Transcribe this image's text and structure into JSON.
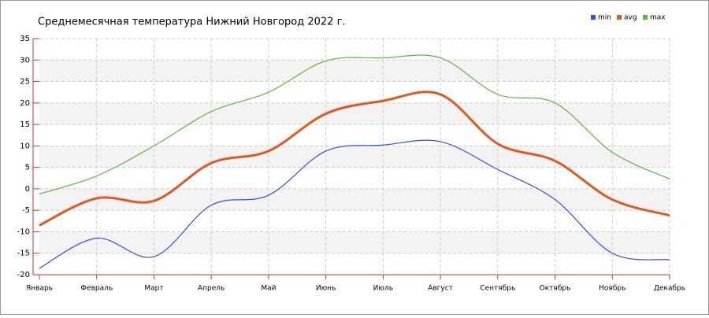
{
  "chart_data": {
    "type": "line",
    "title": "Среднемесячная температура Нижний Новгород  2022 г.",
    "categories": [
      "Январь",
      "Февраль",
      "Март",
      "Апрель",
      "Май",
      "Июнь",
      "Июль",
      "Август",
      "Сентябрь",
      "Октябрь",
      "Ноябрь",
      "Декабрь"
    ],
    "series": [
      {
        "name": "min",
        "color": "#3050e0",
        "values": [
          -18.5,
          -11.5,
          -15.8,
          -3.8,
          -1.5,
          8.8,
          10.2,
          11.0,
          4.5,
          -2.5,
          -15,
          -16.5
        ]
      },
      {
        "name": "avg",
        "color": "#e05a20",
        "values": [
          -8.5,
          -2.2,
          -2.8,
          6,
          8.8,
          17.5,
          20.5,
          22,
          10.5,
          6.5,
          -2.5,
          -6.2
        ]
      },
      {
        "name": "max",
        "color": "#5cb83a",
        "values": [
          -1.2,
          3,
          10,
          18,
          22.5,
          29.8,
          30.5,
          30.5,
          22,
          20,
          8.5,
          2.3
        ]
      }
    ],
    "ylim": [
      -20,
      35
    ],
    "yticks": [
      -20,
      -15,
      -10,
      -5,
      0,
      5,
      10,
      15,
      20,
      25,
      30,
      35
    ],
    "grid": true
  }
}
